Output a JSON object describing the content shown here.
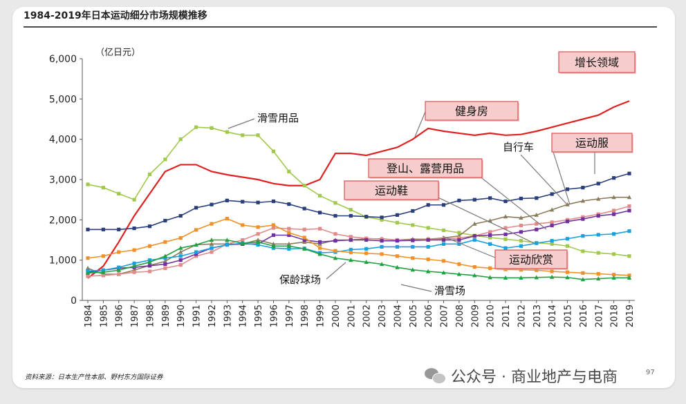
{
  "header": {
    "title": "1984-2019年日本运动细分市场规模推移"
  },
  "footer": {
    "source": "资料来源：日本生产性本部、野村东方国际证券",
    "watermark": "公众号 · 商业地产与电商",
    "page_number": "97"
  },
  "chart_data": {
    "type": "line",
    "ylabel": "（亿日元）",
    "ylim": [
      0,
      6000
    ],
    "yticks": [
      0,
      1000,
      2000,
      3000,
      4000,
      5000,
      6000
    ],
    "ytick_labels": [
      "0",
      "1,000",
      "2,000",
      "3,000",
      "4,000",
      "5,000",
      "6,000"
    ],
    "x": [
      1984,
      1985,
      1986,
      1987,
      1988,
      1989,
      1990,
      1991,
      1992,
      1993,
      1994,
      1995,
      1996,
      1997,
      1998,
      1999,
      2000,
      2001,
      2002,
      2003,
      2004,
      2005,
      2006,
      2007,
      2008,
      2009,
      2010,
      2011,
      2012,
      2013,
      2014,
      2015,
      2016,
      2017,
      2018,
      2019
    ],
    "x_labels": [
      "1984",
      "1985",
      "1986",
      "1987",
      "1988",
      "1989",
      "1990",
      "1991",
      "1992",
      "1993",
      "1994",
      "1995",
      "1996",
      "1997",
      "1998",
      "1999",
      "2000",
      "2001",
      "2002",
      "2003",
      "2004",
      "2005",
      "2006",
      "2007",
      "2008",
      "2009",
      "2010",
      "2011",
      "2012",
      "2013",
      "2014",
      "2015",
      "2016",
      "2017",
      "2018",
      "2019"
    ],
    "grid": false,
    "series": [
      {
        "name": "健身房",
        "color": "#e02020",
        "marker": "none",
        "values": [
          550,
          850,
          1450,
          2100,
          2650,
          3200,
          3370,
          3370,
          3200,
          3120,
          3060,
          3000,
          2900,
          2850,
          2850,
          3000,
          3650,
          3650,
          3600,
          3700,
          3800,
          4000,
          4270,
          4200,
          4150,
          4100,
          4150,
          4100,
          4120,
          4200,
          4300,
          4400,
          4500,
          4600,
          4800,
          4950
        ]
      },
      {
        "name": "滑雪用品",
        "color": "#a0c84a",
        "marker": "square",
        "values": [
          2880,
          2800,
          2650,
          2500,
          3130,
          3500,
          4000,
          4300,
          4280,
          4180,
          4100,
          4100,
          3700,
          3200,
          2850,
          2600,
          2420,
          2250,
          2070,
          2000,
          1930,
          1870,
          1800,
          1740,
          1680,
          1610,
          1560,
          1520,
          1480,
          1430,
          1400,
          1350,
          1220,
          1180,
          1150,
          1100
        ]
      },
      {
        "name": "自行车",
        "color": "#2a3e7a",
        "marker": "square",
        "values": [
          1760,
          1760,
          1760,
          1790,
          1840,
          1980,
          2100,
          2300,
          2380,
          2480,
          2450,
          2430,
          2460,
          2390,
          2280,
          2180,
          2100,
          2100,
          2080,
          2060,
          2120,
          2220,
          2370,
          2370,
          2480,
          2500,
          2540,
          2460,
          2530,
          2540,
          2640,
          2760,
          2800,
          2900,
          3040,
          3150
        ]
      },
      {
        "name": "运动服",
        "color": "#8a7c5a",
        "marker": "triangle",
        "values": [
          800,
          650,
          650,
          750,
          870,
          970,
          1200,
          1380,
          1400,
          1400,
          1400,
          1500,
          1400,
          1400,
          1450,
          1400,
          1500,
          1500,
          1530,
          1530,
          1500,
          1520,
          1520,
          1550,
          1600,
          1900,
          1980,
          2080,
          2050,
          2120,
          2250,
          2380,
          2470,
          2520,
          2560,
          2560
        ]
      },
      {
        "name": "登山、露营用品",
        "color": "#e08a8a",
        "marker": "square",
        "values": [
          600,
          620,
          650,
          700,
          720,
          800,
          880,
          1100,
          1200,
          1400,
          1500,
          1650,
          1800,
          1780,
          1760,
          1780,
          1650,
          1580,
          1540,
          1520,
          1500,
          1500,
          1520,
          1520,
          1550,
          1600,
          1700,
          1800,
          1860,
          1900,
          1940,
          2000,
          2070,
          2140,
          2230,
          2340
        ]
      },
      {
        "name": "运动鞋",
        "color": "#7030a0",
        "marker": "square",
        "values": [
          700,
          750,
          800,
          820,
          860,
          900,
          1000,
          1150,
          1300,
          1380,
          1400,
          1400,
          1620,
          1620,
          1500,
          1450,
          1480,
          1500,
          1500,
          1480,
          1480,
          1490,
          1500,
          1500,
          1500,
          1600,
          1620,
          1640,
          1700,
          1760,
          1860,
          1960,
          2020,
          2100,
          2140,
          2230
        ]
      },
      {
        "name": "运动欣赏",
        "color": "#19a0e0",
        "marker": "square",
        "values": [
          730,
          750,
          820,
          920,
          1000,
          1050,
          1100,
          1200,
          1300,
          1380,
          1420,
          1380,
          1300,
          1280,
          1290,
          1180,
          1200,
          1260,
          1280,
          1330,
          1330,
          1330,
          1330,
          1400,
          1400,
          1500,
          1400,
          1300,
          1350,
          1420,
          1480,
          1530,
          1600,
          1630,
          1650,
          1720
        ]
      },
      {
        "name": "保龄球场",
        "color": "#f0902a",
        "marker": "square",
        "values": [
          1050,
          1100,
          1200,
          1250,
          1350,
          1450,
          1550,
          1750,
          1900,
          2030,
          1870,
          1820,
          1870,
          1680,
          1560,
          1300,
          1230,
          1190,
          1170,
          1150,
          1100,
          1050,
          1020,
          980,
          900,
          830,
          800,
          770,
          760,
          750,
          720,
          700,
          680,
          660,
          640,
          620
        ]
      },
      {
        "name": "滑雪场",
        "color": "#20a040",
        "marker": "triangle",
        "values": [
          680,
          700,
          750,
          850,
          950,
          1100,
          1300,
          1380,
          1500,
          1500,
          1420,
          1450,
          1350,
          1350,
          1280,
          1150,
          1050,
          1000,
          950,
          900,
          820,
          760,
          720,
          690,
          650,
          620,
          570,
          560,
          560,
          570,
          580,
          570,
          520,
          540,
          560,
          560
        ]
      }
    ],
    "annotations": [
      {
        "text": "增长领域",
        "boxed": true
      },
      {
        "text": "健身房",
        "boxed": true
      },
      {
        "text": "运动服",
        "boxed": true
      },
      {
        "text": "登山、露营用品",
        "boxed": true
      },
      {
        "text": "运动鞋",
        "boxed": true
      },
      {
        "text": "运动欣赏",
        "boxed": true
      },
      {
        "text": "滑雪用品",
        "boxed": false
      },
      {
        "text": "自行车",
        "boxed": false
      },
      {
        "text": "保龄球场",
        "boxed": false
      },
      {
        "text": "滑雪场",
        "boxed": false
      }
    ]
  }
}
